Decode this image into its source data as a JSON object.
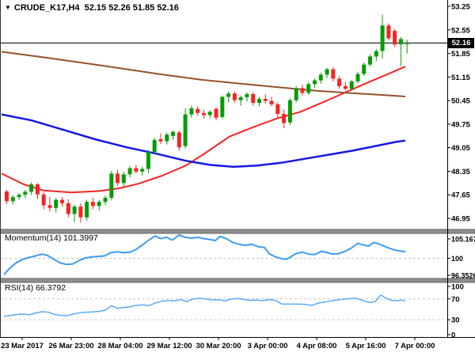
{
  "window_title": {
    "dropdown_icon": "▼",
    "symbol": "CRUDE_K17,H4",
    "ohlc_quote": "52.15 52.26 51.85 52.16"
  },
  "colors": {
    "background": "#ffffff",
    "bull": "#089b08",
    "bear": "#f62424",
    "ma_fast_red": "#f62424",
    "ma_slow_blue": "#1717e6",
    "ma_long_brown": "#96522a",
    "momentum_line": "#3e9bf0",
    "rsi_line": "#5aabf5",
    "quote_line": "#2a2a2a",
    "level_dash": "#c4c4c4",
    "separator": "#8f8f8f",
    "axis_text": "#000000",
    "price_tag_bg": "#000000",
    "price_tag_text": "#ffffff"
  },
  "chart_data": [
    {
      "type": "candlestick",
      "panel": "main",
      "symbol": "CRUDE_K17,H4",
      "timeframe": "H4",
      "ohlc_display": {
        "open": "52.15",
        "high": "52.26",
        "low": "51.85",
        "close": "52.16"
      },
      "price_line": 52.16,
      "ylim": [
        46.6,
        53.4
      ],
      "yticks": [
        "53.25",
        "52.55",
        "51.85",
        "51.15",
        "50.45",
        "49.75",
        "49.05",
        "48.35",
        "47.65",
        "46.95"
      ],
      "xticklabels": [
        "23 Mar 2017",
        "26 Mar 23:00",
        "28 Mar 04:00",
        "29 Mar 12:00",
        "30 Mar 20:00",
        "3 Apr 00:00",
        "4 Apr 08:00",
        "5 Apr 16:00",
        "7 Apr 00:00"
      ],
      "candles": [
        [
          47.75,
          47.8,
          47.38,
          47.46
        ],
        [
          47.46,
          47.64,
          47.36,
          47.58
        ],
        [
          47.58,
          47.7,
          47.5,
          47.65
        ],
        [
          47.65,
          47.8,
          47.55,
          47.74
        ],
        [
          47.74,
          48.02,
          47.64,
          47.96
        ],
        [
          47.96,
          48.0,
          47.52,
          47.66
        ],
        [
          47.66,
          47.74,
          47.22,
          47.34
        ],
        [
          47.34,
          47.58,
          47.15,
          47.26
        ],
        [
          47.26,
          47.56,
          47.12,
          47.5
        ],
        [
          47.5,
          47.58,
          47.3,
          47.4
        ],
        [
          47.4,
          47.52,
          46.98,
          47.08
        ],
        [
          47.08,
          47.36,
          46.84,
          47.3
        ],
        [
          47.3,
          47.4,
          46.82,
          46.98
        ],
        [
          46.98,
          47.5,
          46.88,
          47.44
        ],
        [
          47.44,
          47.56,
          47.22,
          47.32
        ],
        [
          47.32,
          47.5,
          47.18,
          47.44
        ],
        [
          47.44,
          47.62,
          47.34,
          47.56
        ],
        [
          47.56,
          48.36,
          47.48,
          48.28
        ],
        [
          48.28,
          48.4,
          47.92,
          48.0
        ],
        [
          48.0,
          48.34,
          47.9,
          48.26
        ],
        [
          48.26,
          48.5,
          48.16,
          48.44
        ],
        [
          48.44,
          48.54,
          48.28,
          48.34
        ],
        [
          48.34,
          48.48,
          48.22,
          48.42
        ],
        [
          48.42,
          48.98,
          48.3,
          48.92
        ],
        [
          48.92,
          49.34,
          48.84,
          49.28
        ],
        [
          49.3,
          49.48,
          49.16,
          49.24
        ],
        [
          49.24,
          49.5,
          49.14,
          49.44
        ],
        [
          49.4,
          49.56,
          49.28,
          49.52
        ],
        [
          49.5,
          49.56,
          48.96,
          49.06
        ],
        [
          49.1,
          50.22,
          49.02,
          50.04
        ],
        [
          50.04,
          50.3,
          49.94,
          50.22
        ],
        [
          50.2,
          50.28,
          50.0,
          50.08
        ],
        [
          50.08,
          50.18,
          49.92,
          50.02
        ],
        [
          50.02,
          50.16,
          49.92,
          50.12
        ],
        [
          50.2,
          50.26,
          49.86,
          49.94
        ],
        [
          49.96,
          50.6,
          49.9,
          50.56
        ],
        [
          50.56,
          50.72,
          50.4,
          50.66
        ],
        [
          50.66,
          50.72,
          50.38,
          50.46
        ],
        [
          50.46,
          50.6,
          50.3,
          50.55
        ],
        [
          50.55,
          50.7,
          50.42,
          50.64
        ],
        [
          50.64,
          50.7,
          50.3,
          50.38
        ],
        [
          50.38,
          50.56,
          50.28,
          50.5
        ],
        [
          50.5,
          50.64,
          50.36,
          50.44
        ],
        [
          50.44,
          50.56,
          50.28,
          50.34
        ],
        [
          50.34,
          50.4,
          49.95,
          50.05
        ],
        [
          50.05,
          50.18,
          49.63,
          49.78
        ],
        [
          49.8,
          50.52,
          49.72,
          50.46
        ],
        [
          50.46,
          50.88,
          50.4,
          50.82
        ],
        [
          50.82,
          50.92,
          50.6,
          50.68
        ],
        [
          50.68,
          51.0,
          50.62,
          50.94
        ],
        [
          50.94,
          51.1,
          50.82,
          51.05
        ],
        [
          51.05,
          51.28,
          50.95,
          51.22
        ],
        [
          51.22,
          51.42,
          51.12,
          51.38
        ],
        [
          51.38,
          51.44,
          51.02,
          51.1
        ],
        [
          51.1,
          51.18,
          50.8,
          50.88
        ],
        [
          50.88,
          51.0,
          50.74,
          50.8
        ],
        [
          50.8,
          51.06,
          50.74,
          51.02
        ],
        [
          51.02,
          51.3,
          50.96,
          51.24
        ],
        [
          51.24,
          51.58,
          51.18,
          51.52
        ],
        [
          51.52,
          51.82,
          51.46,
          51.76
        ],
        [
          51.76,
          51.98,
          51.62,
          51.92
        ],
        [
          51.92,
          53.0,
          51.7,
          52.68
        ],
        [
          52.68,
          52.74,
          52.24,
          52.3
        ],
        [
          52.52,
          52.58,
          52.04,
          52.12
        ],
        [
          52.12,
          52.34,
          51.48,
          52.28
        ],
        [
          52.15,
          52.26,
          51.85,
          52.16
        ]
      ],
      "overlays": [
        {
          "name": "ma-fast-red",
          "color_key": "ma_fast_red",
          "width": 2,
          "points": [
            [
              2,
              48.28
            ],
            [
              30,
              47.96
            ],
            [
              55,
              47.78
            ],
            [
              90,
              47.72
            ],
            [
              125,
              47.76
            ],
            [
              150,
              47.84
            ],
            [
              175,
              47.98
            ],
            [
              205,
              48.22
            ],
            [
              235,
              48.52
            ],
            [
              260,
              48.9
            ],
            [
              290,
              49.38
            ],
            [
              320,
              49.66
            ],
            [
              350,
              49.92
            ],
            [
              380,
              50.12
            ],
            [
              410,
              50.42
            ],
            [
              437,
              50.7
            ],
            [
              460,
              50.94
            ],
            [
              480,
              51.14
            ],
            [
              500,
              51.34
            ],
            [
              512,
              51.46
            ]
          ]
        },
        {
          "name": "ma-slow-blue",
          "color_key": "ma_slow_blue",
          "width": 2.5,
          "points": [
            [
              2,
              50.04
            ],
            [
              40,
              49.86
            ],
            [
              80,
              49.58
            ],
            [
              120,
              49.3
            ],
            [
              160,
              49.06
            ],
            [
              200,
              48.86
            ],
            [
              235,
              48.66
            ],
            [
              265,
              48.54
            ],
            [
              295,
              48.48
            ],
            [
              325,
              48.52
            ],
            [
              355,
              48.6
            ],
            [
              385,
              48.72
            ],
            [
              415,
              48.84
            ],
            [
              445,
              48.96
            ],
            [
              475,
              49.1
            ],
            [
              500,
              49.22
            ],
            [
              512,
              49.26
            ]
          ]
        },
        {
          "name": "ma-long-brown",
          "color_key": "ma_long_brown",
          "width": 2,
          "points": [
            [
              2,
              51.9
            ],
            [
              60,
              51.72
            ],
            [
              120,
              51.52
            ],
            [
              160,
              51.38
            ],
            [
              200,
              51.24
            ],
            [
              250,
              51.08
            ],
            [
              300,
              50.96
            ],
            [
              350,
              50.85
            ],
            [
              400,
              50.74
            ],
            [
              437,
              50.68
            ],
            [
              480,
              50.62
            ],
            [
              512,
              50.57
            ]
          ]
        }
      ]
    },
    {
      "type": "line",
      "panel": "momentum",
      "label": "Momentum(14) 101.3997",
      "name": "Momentum",
      "period": "14",
      "value": "101.3997",
      "ylim": [
        96.3526,
        105.1675
      ],
      "yticks": [
        "105.1675",
        "100",
        "96.3526"
      ],
      "levels": [
        100
      ],
      "points": [
        [
          5,
          96.5
        ],
        [
          13,
          98.0
        ],
        [
          21,
          99.1
        ],
        [
          29,
          99.8
        ],
        [
          37,
          100.2
        ],
        [
          45,
          100.5
        ],
        [
          53,
          100.9
        ],
        [
          60,
          100.6
        ],
        [
          68,
          99.8
        ],
        [
          76,
          99.0
        ],
        [
          84,
          98.7
        ],
        [
          92,
          98.8
        ],
        [
          100,
          99.5
        ],
        [
          108,
          100.1
        ],
        [
          116,
          100.3
        ],
        [
          124,
          100.4
        ],
        [
          132,
          100.5
        ],
        [
          140,
          101.2
        ],
        [
          148,
          101.4
        ],
        [
          156,
          101.2
        ],
        [
          164,
          101.3
        ],
        [
          172,
          101.9
        ],
        [
          180,
          102.9
        ],
        [
          188,
          103.9
        ],
        [
          196,
          104.8
        ],
        [
          203,
          104.2
        ],
        [
          210,
          104.5
        ],
        [
          218,
          103.9
        ],
        [
          226,
          105.0
        ],
        [
          234,
          104.5
        ],
        [
          242,
          104.3
        ],
        [
          250,
          104.5
        ],
        [
          258,
          104.2
        ],
        [
          266,
          104.0
        ],
        [
          272,
          103.8
        ],
        [
          278,
          104.7
        ],
        [
          286,
          104.2
        ],
        [
          294,
          103.4
        ],
        [
          302,
          103.0
        ],
        [
          310,
          102.8
        ],
        [
          318,
          103.0
        ],
        [
          326,
          102.5
        ],
        [
          334,
          102.3
        ],
        [
          340,
          101.0
        ],
        [
          348,
          100.3
        ],
        [
          356,
          99.9
        ],
        [
          362,
          99.8
        ],
        [
          368,
          100.4
        ],
        [
          374,
          101.0
        ],
        [
          382,
          101.3
        ],
        [
          390,
          100.9
        ],
        [
          398,
          100.8
        ],
        [
          406,
          101.5
        ],
        [
          414,
          101.2
        ],
        [
          420,
          100.9
        ],
        [
          428,
          101.0
        ],
        [
          436,
          101.5
        ],
        [
          444,
          102.2
        ],
        [
          452,
          103.2
        ],
        [
          458,
          102.9
        ],
        [
          466,
          102.6
        ],
        [
          472,
          103.4
        ],
        [
          480,
          103.0
        ],
        [
          488,
          102.4
        ],
        [
          496,
          101.9
        ],
        [
          504,
          101.6
        ],
        [
          512,
          101.4
        ]
      ]
    },
    {
      "type": "line",
      "panel": "rsi",
      "label": "RSI(14) 66.3792",
      "name": "RSI",
      "period": "14",
      "value": "66.3792",
      "ylim": [
        0,
        100
      ],
      "yticks": [
        "100",
        "70",
        "30",
        "0"
      ],
      "levels": [
        70,
        30
      ],
      "points": [
        [
          5,
          36.5
        ],
        [
          13,
          38.5
        ],
        [
          21,
          40
        ],
        [
          29,
          41
        ],
        [
          37,
          39.5
        ],
        [
          45,
          43
        ],
        [
          53,
          45.5
        ],
        [
          61,
          44.5
        ],
        [
          69,
          40
        ],
        [
          77,
          38.5
        ],
        [
          85,
          38
        ],
        [
          93,
          41
        ],
        [
          101,
          43.5
        ],
        [
          109,
          44.5
        ],
        [
          117,
          45
        ],
        [
          125,
          46
        ],
        [
          133,
          48
        ],
        [
          141,
          57
        ],
        [
          148,
          52
        ],
        [
          156,
          53.5
        ],
        [
          164,
          55
        ],
        [
          172,
          57.5
        ],
        [
          180,
          58.5
        ],
        [
          188,
          57
        ],
        [
          196,
          62
        ],
        [
          204,
          65.5
        ],
        [
          212,
          67
        ],
        [
          220,
          66
        ],
        [
          228,
          68.5
        ],
        [
          236,
          65
        ],
        [
          244,
          70
        ],
        [
          252,
          71
        ],
        [
          260,
          70
        ],
        [
          268,
          68
        ],
        [
          276,
          68.5
        ],
        [
          284,
          66
        ],
        [
          292,
          69.5
        ],
        [
          300,
          71
        ],
        [
          308,
          69
        ],
        [
          316,
          67
        ],
        [
          324,
          68
        ],
        [
          332,
          66.5
        ],
        [
          340,
          69
        ],
        [
          348,
          67
        ],
        [
          356,
          60
        ],
        [
          366,
          60
        ],
        [
          376,
          60
        ],
        [
          386,
          59.5
        ],
        [
          394,
          57.5
        ],
        [
          402,
          62
        ],
        [
          410,
          64
        ],
        [
          418,
          66
        ],
        [
          426,
          68
        ],
        [
          434,
          69.5
        ],
        [
          442,
          70.5
        ],
        [
          450,
          71
        ],
        [
          456,
          68.5
        ],
        [
          462,
          65
        ],
        [
          468,
          63
        ],
        [
          474,
          65
        ],
        [
          481,
          77.5
        ],
        [
          488,
          71
        ],
        [
          495,
          67
        ],
        [
          501,
          66
        ],
        [
          507,
          67.5
        ],
        [
          512,
          66.4
        ]
      ]
    }
  ]
}
